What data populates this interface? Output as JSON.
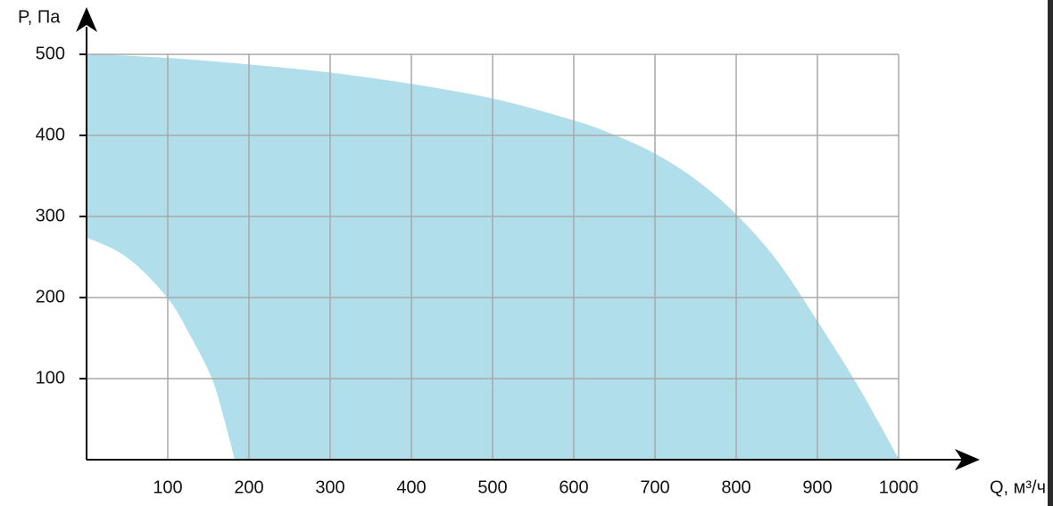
{
  "chart_data": {
    "type": "area-range",
    "y_label": "P, Па",
    "x_label": "Q, м³/ч",
    "upper": {
      "x": [
        0,
        100,
        200,
        300,
        400,
        500,
        600,
        650,
        700,
        750,
        800,
        850,
        900,
        950,
        1000
      ],
      "y": [
        500,
        495,
        487,
        477,
        463,
        445,
        418,
        400,
        377,
        345,
        302,
        245,
        170,
        90,
        0
      ]
    },
    "lower": {
      "x": [
        0,
        50,
        100,
        130,
        155,
        170,
        183
      ],
      "y": [
        275,
        250,
        200,
        150,
        100,
        50,
        0
      ]
    },
    "color": "#b0dfeb",
    "xlim": [
      0,
      1000
    ],
    "ylim": [
      0,
      500
    ],
    "xticks": [
      100,
      200,
      300,
      400,
      500,
      600,
      700,
      800,
      900,
      1000
    ],
    "yticks": [
      100,
      200,
      300,
      400,
      500
    ],
    "grid": true
  }
}
